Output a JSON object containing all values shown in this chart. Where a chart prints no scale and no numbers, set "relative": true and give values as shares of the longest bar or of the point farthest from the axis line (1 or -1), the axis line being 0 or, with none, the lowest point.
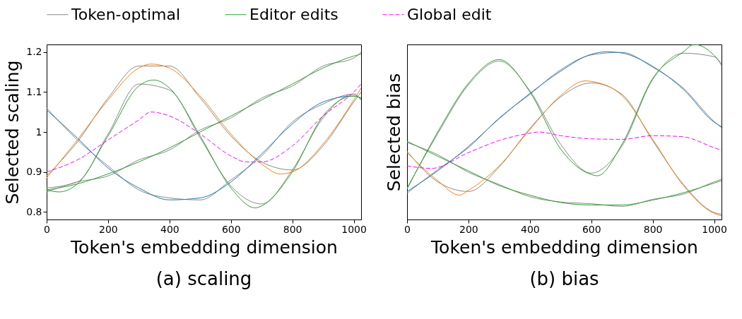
{
  "chart_data": [
    {
      "type": "line",
      "title": "(a)  scaling",
      "xlabel": "Token's embedding dimension",
      "ylabel": "Selected scaling",
      "xlim": [
        0,
        1024
      ],
      "xticks": [
        0,
        200,
        400,
        600,
        800,
        1000
      ],
      "ylim": [
        0.781,
        1.219
      ],
      "yticks": [
        0.8,
        0.9,
        1.0,
        1.1,
        1.2
      ],
      "legend": "top",
      "grid": false,
      "series": [
        {
          "name": "Token-optimal",
          "color": "#888888",
          "x": [
            0,
            100,
            200,
            300,
            400,
            500,
            600,
            700,
            800,
            900,
            1000,
            1024
          ],
          "values": [
            1.06,
            0.98,
            0.915,
            0.855,
            0.835,
            0.83,
            0.88,
            0.94,
            1.025,
            1.07,
            1.095,
            1.08
          ]
        },
        {
          "color": "#888888",
          "x": [
            0,
            100,
            200,
            300,
            400,
            500,
            600,
            700,
            800,
            900,
            1000,
            1024
          ],
          "values": [
            0.89,
            0.975,
            1.085,
            1.165,
            1.165,
            1.085,
            0.99,
            0.925,
            0.905,
            0.965,
            1.075,
            1.1
          ]
        },
        {
          "color": "#888888",
          "x": [
            0,
            100,
            200,
            300,
            400,
            500,
            600,
            700,
            800,
            900,
            1000,
            1024
          ],
          "values": [
            0.86,
            0.875,
            0.995,
            1.12,
            1.105,
            0.985,
            0.865,
            0.82,
            0.905,
            1.035,
            1.095,
            1.08
          ]
        },
        {
          "color": "#888888",
          "x": [
            0,
            100,
            200,
            300,
            400,
            500,
            600,
            700,
            800,
            900,
            1000,
            1024
          ],
          "values": [
            0.85,
            0.875,
            0.89,
            0.93,
            0.955,
            1.005,
            1.035,
            1.085,
            1.115,
            1.165,
            1.185,
            1.2
          ]
        },
        {
          "color": "#1f77b4",
          "x": [
            0,
            100,
            200,
            300,
            400,
            500,
            600,
            700,
            800,
            900,
            1000,
            1024
          ],
          "values": [
            1.055,
            0.985,
            0.91,
            0.86,
            0.83,
            0.835,
            0.875,
            0.945,
            1.02,
            1.075,
            1.09,
            1.085
          ]
        },
        {
          "color": "#ff7f0e",
          "x": [
            0,
            100,
            200,
            300,
            340,
            400,
            500,
            600,
            700,
            760,
            800,
            900,
            1000,
            1024
          ],
          "values": [
            0.885,
            0.98,
            1.08,
            1.16,
            1.17,
            1.16,
            1.09,
            0.995,
            0.92,
            0.895,
            0.9,
            0.97,
            1.08,
            1.11
          ]
        },
        {
          "name": "Editor edits",
          "color": "#2ca02c",
          "x": [
            0,
            40,
            100,
            200,
            300,
            350,
            400,
            500,
            600,
            680,
            700,
            800,
            900,
            1000,
            1024
          ],
          "values": [
            0.855,
            0.85,
            0.87,
            0.99,
            1.115,
            1.13,
            1.11,
            0.99,
            0.86,
            0.81,
            0.815,
            0.9,
            1.04,
            1.09,
            1.085
          ]
        },
        {
          "color": "#2ca02c",
          "x": [
            0,
            100,
            200,
            300,
            400,
            500,
            600,
            700,
            800,
            900,
            1000,
            1024
          ],
          "values": [
            0.855,
            0.87,
            0.895,
            0.925,
            0.96,
            1.0,
            1.04,
            1.08,
            1.12,
            1.16,
            1.19,
            1.195
          ]
        },
        {
          "name": "Global edit",
          "color": "#ff00ff",
          "line_style": "dashed",
          "x": [
            0,
            100,
            200,
            300,
            340,
            400,
            500,
            600,
            650,
            700,
            800,
            900,
            1000,
            1024
          ],
          "values": [
            0.9,
            0.93,
            0.98,
            1.03,
            1.05,
            1.04,
            0.995,
            0.94,
            0.925,
            0.925,
            0.965,
            1.04,
            1.1,
            1.12
          ]
        }
      ]
    },
    {
      "type": "line",
      "title": "(b)  bias",
      "xlabel": "Token's embedding dimension",
      "ylabel": "Selected bias",
      "relative": true,
      "xlim": [
        0,
        1024
      ],
      "xticks": [
        0,
        200,
        400,
        600,
        800,
        1000
      ],
      "grid": false,
      "series": [
        {
          "color": "#888888",
          "x": [
            0,
            100,
            200,
            300,
            400,
            500,
            600,
            700,
            800,
            900,
            1000,
            1024
          ],
          "values": [
            0.15,
            0.285,
            0.41,
            0.58,
            0.715,
            0.855,
            0.94,
            0.955,
            0.87,
            0.75,
            0.56,
            0.525
          ]
        },
        {
          "color": "#888888",
          "x": [
            0,
            100,
            200,
            300,
            400,
            500,
            600,
            700,
            800,
            900,
            1000,
            1024
          ],
          "values": [
            0.39,
            0.215,
            0.16,
            0.3,
            0.52,
            0.7,
            0.78,
            0.715,
            0.45,
            0.2,
            0.04,
            0.03
          ]
        },
        {
          "color": "#888888",
          "x": [
            0,
            100,
            200,
            300,
            400,
            500,
            600,
            700,
            800,
            900,
            1000,
            1024
          ],
          "values": [
            0.18,
            0.49,
            0.77,
            0.905,
            0.735,
            0.43,
            0.265,
            0.42,
            0.8,
            0.95,
            0.93,
            0.88
          ]
        },
        {
          "color": "#888888",
          "x": [
            0,
            100,
            200,
            300,
            400,
            500,
            600,
            700,
            800,
            900,
            1000,
            1024
          ],
          "values": [
            0.44,
            0.37,
            0.27,
            0.2,
            0.13,
            0.1,
            0.09,
            0.075,
            0.115,
            0.145,
            0.215,
            0.23
          ]
        },
        {
          "color": "#1f77b4",
          "x": [
            0,
            100,
            200,
            300,
            400,
            500,
            600,
            650,
            700,
            800,
            900,
            1000,
            1024
          ],
          "values": [
            0.16,
            0.278,
            0.417,
            0.576,
            0.72,
            0.847,
            0.944,
            0.958,
            0.951,
            0.875,
            0.743,
            0.556,
            0.53
          ]
        },
        {
          "color": "#ff7f0e",
          "x": [
            0,
            100,
            170,
            200,
            300,
            400,
            500,
            580,
            600,
            700,
            800,
            900,
            1000,
            1024
          ],
          "values": [
            0.382,
            0.222,
            0.139,
            0.167,
            0.306,
            0.514,
            0.708,
            0.792,
            0.789,
            0.708,
            0.458,
            0.194,
            0.035,
            0.021
          ]
        },
        {
          "color": "#2ca02c",
          "x": [
            0,
            100,
            200,
            300,
            400,
            500,
            600,
            620,
            700,
            800,
            900,
            935,
            1000,
            1024
          ],
          "values": [
            0.174,
            0.5,
            0.778,
            0.914,
            0.729,
            0.403,
            0.257,
            0.25,
            0.43,
            0.806,
            0.958,
            1.0,
            0.938,
            0.889
          ]
        },
        {
          "color": "#2ca02c",
          "x": [
            0,
            100,
            200,
            300,
            400,
            500,
            600,
            700,
            800,
            900,
            1000,
            1024
          ],
          "values": [
            0.447,
            0.361,
            0.278,
            0.194,
            0.139,
            0.097,
            0.083,
            0.083,
            0.111,
            0.153,
            0.208,
            0.222
          ]
        },
        {
          "color": "#ff00ff",
          "line_style": "dashed",
          "x": [
            0,
            80,
            200,
            300,
            400,
            430,
            500,
            600,
            700,
            800,
            900,
            1000,
            1024
          ],
          "values": [
            0.306,
            0.292,
            0.382,
            0.451,
            0.493,
            0.5,
            0.479,
            0.461,
            0.458,
            0.479,
            0.472,
            0.41,
            0.396
          ]
        }
      ]
    }
  ]
}
